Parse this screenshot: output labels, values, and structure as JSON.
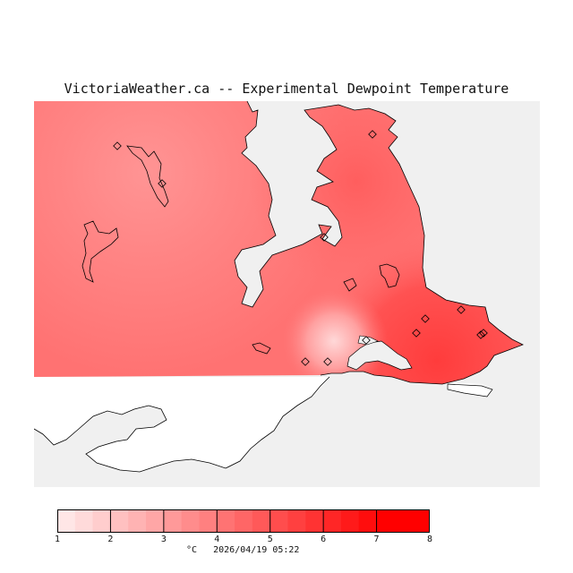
{
  "title": "VictoriaWeather.ca -- Experimental Dewpoint Temperature",
  "colors": {
    "sea": "#f0f0f0",
    "land_outside": "#ffffff",
    "land_base": "#ff7a7a",
    "coast": "#000000"
  },
  "legend": {
    "ticks": [
      "1",
      "2",
      "3",
      "4",
      "5",
      "6",
      "7",
      "8"
    ],
    "steps": [
      "#ffe6e6",
      "#ffdada",
      "#ffcdcd",
      "#ffc0c0",
      "#ffb3b3",
      "#ffa6a6",
      "#ff9999",
      "#ff8c8c",
      "#ff8080",
      "#ff7373",
      "#ff6666",
      "#ff5959",
      "#ff4d4d",
      "#ff4040",
      "#ff3333",
      "#ff2626",
      "#ff1a1a",
      "#ff0d0d",
      "#ff0000",
      "#ff0000",
      "#ff0000"
    ],
    "unit": "°C",
    "timestamp": "2026/04/19 05:22"
  },
  "stations_count_note": ""
}
